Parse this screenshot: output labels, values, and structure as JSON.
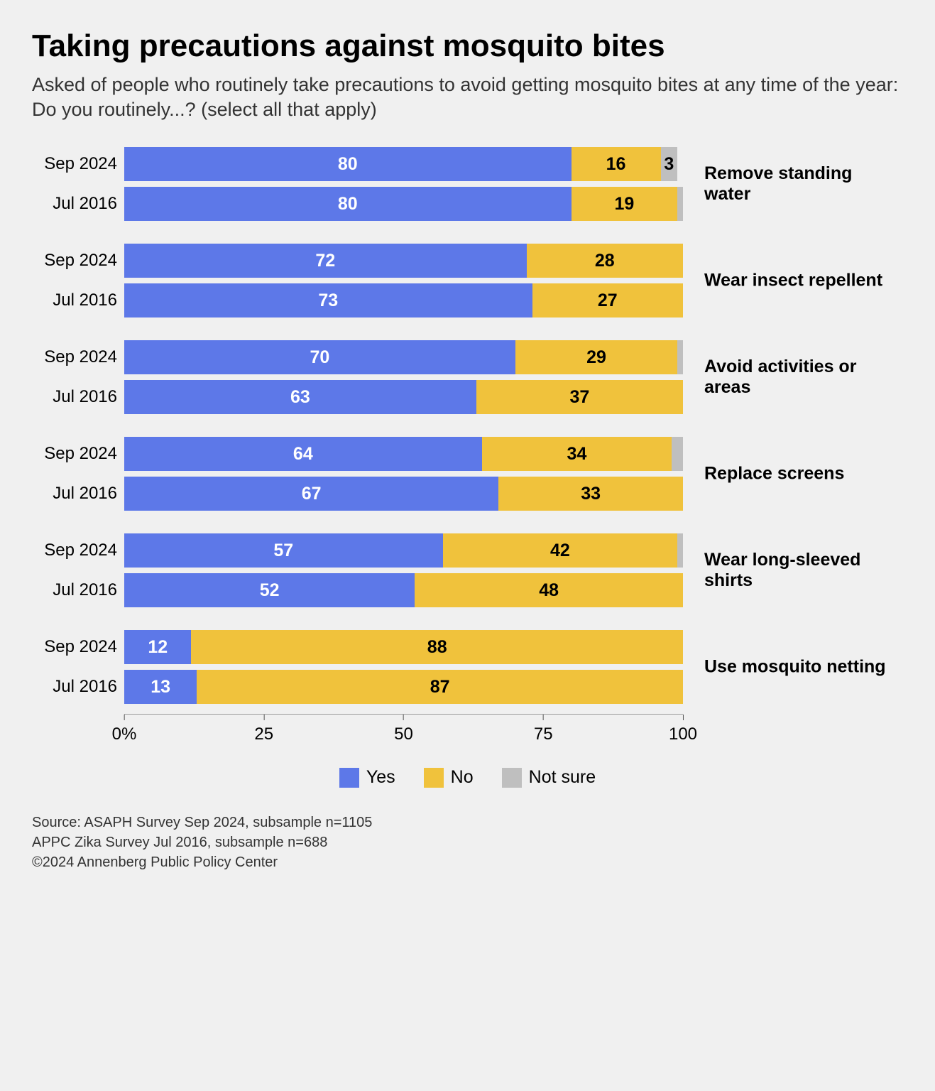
{
  "title": "Taking precautions against mosquito bites",
  "subtitle": "Asked of people who routinely take precautions to avoid getting mosquito bites at any time of the year: Do you routinely...? (select all that apply)",
  "chart": {
    "type": "stacked-bar-horizontal",
    "colors": {
      "yes": "#5d78e8",
      "no": "#f0c23c",
      "not_sure": "#bfbfbf",
      "yes_text": "#ffffff",
      "no_text": "#000000",
      "not_sure_text": "#000000",
      "background": "#f0f0f0"
    },
    "value_label_min_pct": 3,
    "axis": {
      "min": 0,
      "max": 100,
      "ticks": [
        0,
        25,
        50,
        75,
        100
      ],
      "tick_labels": [
        "0%",
        "25",
        "50",
        "75",
        "100"
      ]
    },
    "legend": [
      {
        "key": "yes",
        "label": "Yes"
      },
      {
        "key": "no",
        "label": "No"
      },
      {
        "key": "not_sure",
        "label": "Not sure"
      }
    ],
    "groups": [
      {
        "label": "Remove standing water",
        "rows": [
          {
            "period": "Sep 2024",
            "yes": 80,
            "no": 16,
            "not_sure": 3
          },
          {
            "period": "Jul 2016",
            "yes": 80,
            "no": 19,
            "not_sure": 1
          }
        ]
      },
      {
        "label": "Wear insect repellent",
        "rows": [
          {
            "period": "Sep 2024",
            "yes": 72,
            "no": 28,
            "not_sure": 0
          },
          {
            "period": "Jul 2016",
            "yes": 73,
            "no": 27,
            "not_sure": 0
          }
        ]
      },
      {
        "label": "Avoid activities or areas",
        "rows": [
          {
            "period": "Sep 2024",
            "yes": 70,
            "no": 29,
            "not_sure": 1
          },
          {
            "period": "Jul 2016",
            "yes": 63,
            "no": 37,
            "not_sure": 0
          }
        ]
      },
      {
        "label": "Replace screens",
        "rows": [
          {
            "period": "Sep 2024",
            "yes": 64,
            "no": 34,
            "not_sure": 2
          },
          {
            "period": "Jul 2016",
            "yes": 67,
            "no": 33,
            "not_sure": 0
          }
        ]
      },
      {
        "label": "Wear long-sleeved shirts",
        "rows": [
          {
            "period": "Sep 2024",
            "yes": 57,
            "no": 42,
            "not_sure": 1
          },
          {
            "period": "Jul 2016",
            "yes": 52,
            "no": 48,
            "not_sure": 0
          }
        ]
      },
      {
        "label": "Use mosquito netting",
        "rows": [
          {
            "period": "Sep 2024",
            "yes": 12,
            "no": 88,
            "not_sure": 0
          },
          {
            "period": "Jul 2016",
            "yes": 13,
            "no": 87,
            "not_sure": 0
          }
        ]
      }
    ]
  },
  "footer": {
    "line1": "Source: ASAPH Survey Sep 2024, subsample n=1105",
    "line2": "APPC Zika Survey Jul 2016, subsample n=688",
    "line3": "©2024 Annenberg Public Policy Center"
  }
}
